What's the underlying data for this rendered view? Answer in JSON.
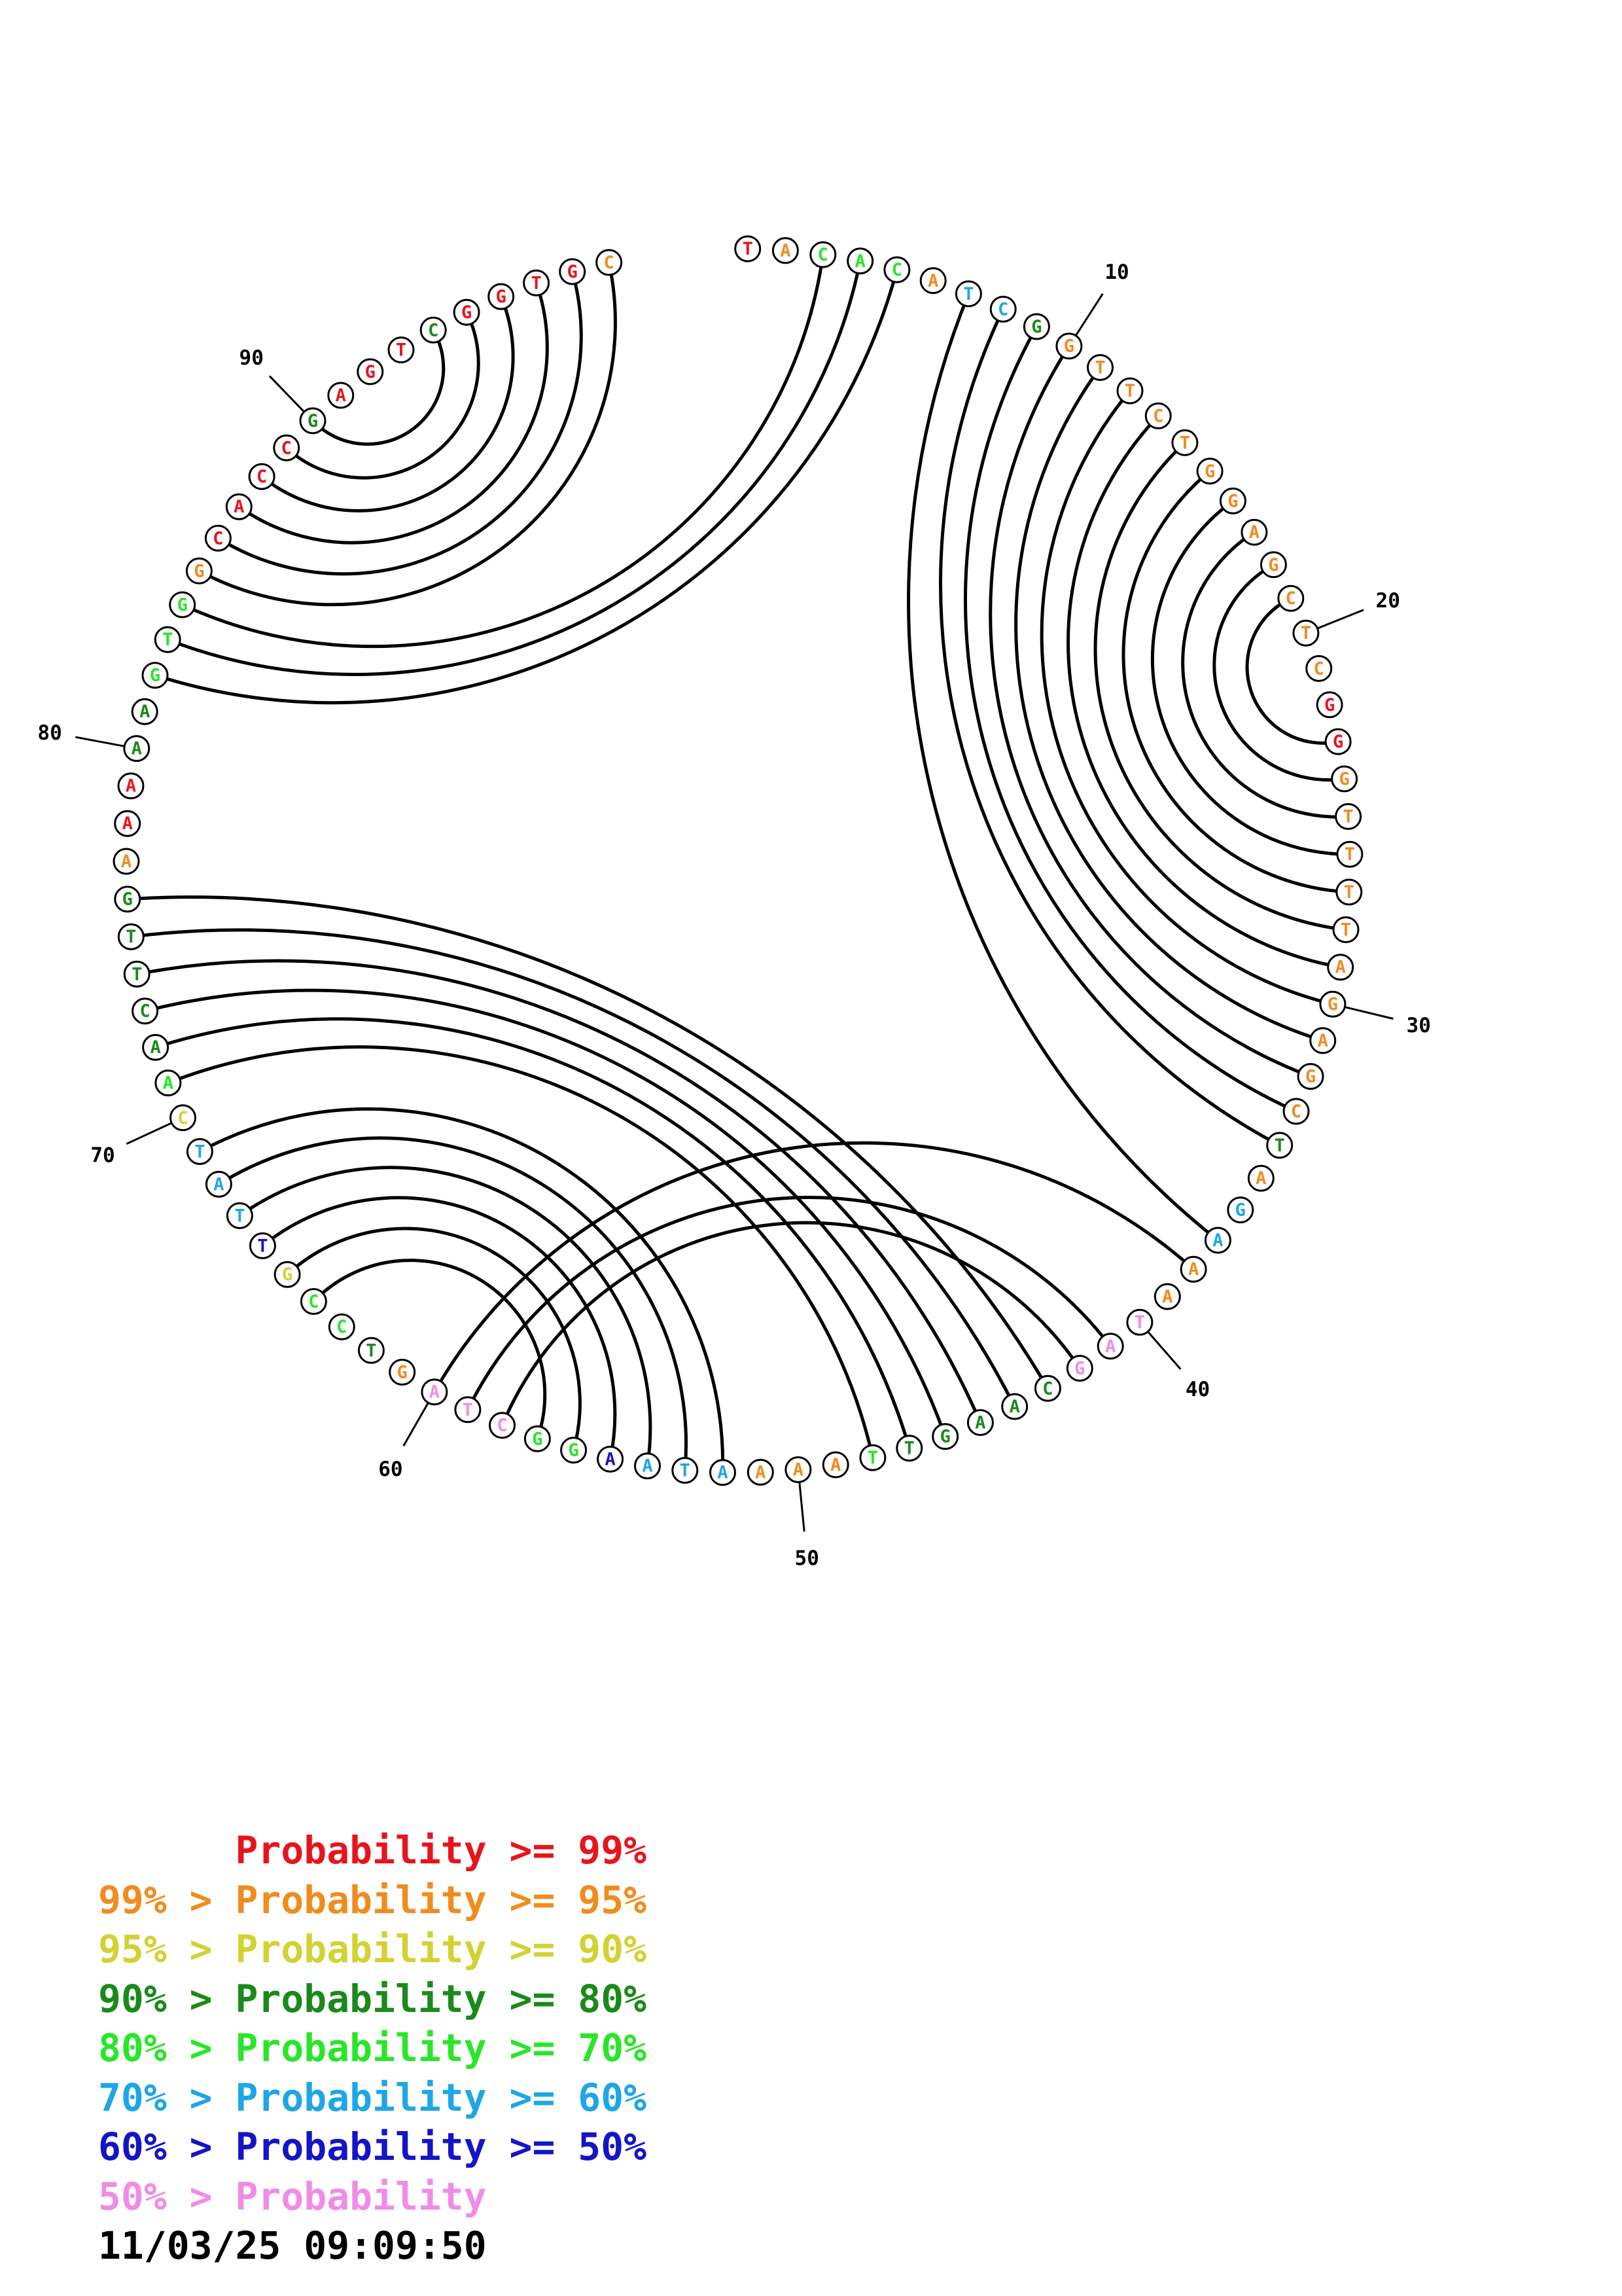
{
  "palette": {
    "p99": "#e8141c",
    "p95": "#f08c1e",
    "p90": "#d2d232",
    "p80": "#1a8a1a",
    "p70": "#28e628",
    "p60": "#1ea6e6",
    "p50": "#1414c8",
    "p00": "#f08ce6"
  },
  "sequence": [
    {
      "n": 1,
      "base": "T",
      "p": "p99"
    },
    {
      "n": 2,
      "base": "A",
      "p": "p95"
    },
    {
      "n": 3,
      "base": "C",
      "p": "p70"
    },
    {
      "n": 4,
      "base": "A",
      "p": "p70"
    },
    {
      "n": 5,
      "base": "C",
      "p": "p70"
    },
    {
      "n": 6,
      "base": "A",
      "p": "p95"
    },
    {
      "n": 7,
      "base": "T",
      "p": "p60"
    },
    {
      "n": 8,
      "base": "C",
      "p": "p60"
    },
    {
      "n": 9,
      "base": "G",
      "p": "p80"
    },
    {
      "n": 10,
      "base": "G",
      "p": "p95"
    },
    {
      "n": 11,
      "base": "T",
      "p": "p95"
    },
    {
      "n": 12,
      "base": "T",
      "p": "p95"
    },
    {
      "n": 13,
      "base": "C",
      "p": "p95"
    },
    {
      "n": 14,
      "base": "T",
      "p": "p95"
    },
    {
      "n": 15,
      "base": "G",
      "p": "p95"
    },
    {
      "n": 16,
      "base": "G",
      "p": "p95"
    },
    {
      "n": 17,
      "base": "A",
      "p": "p95"
    },
    {
      "n": 18,
      "base": "G",
      "p": "p95"
    },
    {
      "n": 19,
      "base": "C",
      "p": "p95"
    },
    {
      "n": 20,
      "base": "T",
      "p": "p95"
    },
    {
      "n": 21,
      "base": "C",
      "p": "p95"
    },
    {
      "n": 22,
      "base": "G",
      "p": "p99"
    },
    {
      "n": 23,
      "base": "G",
      "p": "p99"
    },
    {
      "n": 24,
      "base": "G",
      "p": "p95"
    },
    {
      "n": 25,
      "base": "T",
      "p": "p95"
    },
    {
      "n": 26,
      "base": "T",
      "p": "p95"
    },
    {
      "n": 27,
      "base": "T",
      "p": "p95"
    },
    {
      "n": 28,
      "base": "T",
      "p": "p95"
    },
    {
      "n": 29,
      "base": "A",
      "p": "p95"
    },
    {
      "n": 30,
      "base": "G",
      "p": "p95"
    },
    {
      "n": 31,
      "base": "A",
      "p": "p95"
    },
    {
      "n": 32,
      "base": "G",
      "p": "p95"
    },
    {
      "n": 33,
      "base": "C",
      "p": "p95"
    },
    {
      "n": 34,
      "base": "T",
      "p": "p80"
    },
    {
      "n": 35,
      "base": "A",
      "p": "p95"
    },
    {
      "n": 36,
      "base": "G",
      "p": "p60"
    },
    {
      "n": 37,
      "base": "A",
      "p": "p60"
    },
    {
      "n": 38,
      "base": "A",
      "p": "p95"
    },
    {
      "n": 39,
      "base": "A",
      "p": "p95"
    },
    {
      "n": 40,
      "base": "T",
      "p": "p00"
    },
    {
      "n": 41,
      "base": "A",
      "p": "p00"
    },
    {
      "n": 42,
      "base": "G",
      "p": "p00"
    },
    {
      "n": 43,
      "base": "C",
      "p": "p80"
    },
    {
      "n": 44,
      "base": "A",
      "p": "p80"
    },
    {
      "n": 45,
      "base": "A",
      "p": "p80"
    },
    {
      "n": 46,
      "base": "G",
      "p": "p80"
    },
    {
      "n": 47,
      "base": "T",
      "p": "p80"
    },
    {
      "n": 48,
      "base": "T",
      "p": "p70"
    },
    {
      "n": 49,
      "base": "A",
      "p": "p95"
    },
    {
      "n": 50,
      "base": "A",
      "p": "p95"
    },
    {
      "n": 51,
      "base": "A",
      "p": "p95"
    },
    {
      "n": 52,
      "base": "A",
      "p": "p60"
    },
    {
      "n": 53,
      "base": "T",
      "p": "p60"
    },
    {
      "n": 54,
      "base": "A",
      "p": "p60"
    },
    {
      "n": 55,
      "base": "A",
      "p": "p50"
    },
    {
      "n": 56,
      "base": "G",
      "p": "p70"
    },
    {
      "n": 57,
      "base": "G",
      "p": "p70"
    },
    {
      "n": 58,
      "base": "C",
      "p": "p00"
    },
    {
      "n": 59,
      "base": "T",
      "p": "p00"
    },
    {
      "n": 60,
      "base": "A",
      "p": "p00"
    },
    {
      "n": 61,
      "base": "G",
      "p": "p95"
    },
    {
      "n": 62,
      "base": "T",
      "p": "p80"
    },
    {
      "n": 63,
      "base": "C",
      "p": "p70"
    },
    {
      "n": 64,
      "base": "C",
      "p": "p70"
    },
    {
      "n": 65,
      "base": "G",
      "p": "p90"
    },
    {
      "n": 66,
      "base": "T",
      "p": "p50"
    },
    {
      "n": 67,
      "base": "T",
      "p": "p60"
    },
    {
      "n": 68,
      "base": "A",
      "p": "p60"
    },
    {
      "n": 69,
      "base": "T",
      "p": "p60"
    },
    {
      "n": 70,
      "base": "C",
      "p": "p90"
    },
    {
      "n": 71,
      "base": "A",
      "p": "p70"
    },
    {
      "n": 72,
      "base": "A",
      "p": "p80"
    },
    {
      "n": 73,
      "base": "C",
      "p": "p80"
    },
    {
      "n": 74,
      "base": "T",
      "p": "p80"
    },
    {
      "n": 75,
      "base": "T",
      "p": "p80"
    },
    {
      "n": 76,
      "base": "G",
      "p": "p80"
    },
    {
      "n": 77,
      "base": "A",
      "p": "p95"
    },
    {
      "n": 78,
      "base": "A",
      "p": "p99"
    },
    {
      "n": 79,
      "base": "A",
      "p": "p99"
    },
    {
      "n": 80,
      "base": "A",
      "p": "p80"
    },
    {
      "n": 81,
      "base": "A",
      "p": "p80"
    },
    {
      "n": 82,
      "base": "G",
      "p": "p70"
    },
    {
      "n": 83,
      "base": "T",
      "p": "p70"
    },
    {
      "n": 84,
      "base": "G",
      "p": "p70"
    },
    {
      "n": 85,
      "base": "G",
      "p": "p95"
    },
    {
      "n": 86,
      "base": "C",
      "p": "p99"
    },
    {
      "n": 87,
      "base": "A",
      "p": "p99"
    },
    {
      "n": 88,
      "base": "C",
      "p": "p99"
    },
    {
      "n": 89,
      "base": "C",
      "p": "p99"
    },
    {
      "n": 90,
      "base": "G",
      "p": "p80"
    },
    {
      "n": 91,
      "base": "A",
      "p": "p99"
    },
    {
      "n": 92,
      "base": "G",
      "p": "p99"
    },
    {
      "n": 93,
      "base": "T",
      "p": "p99"
    },
    {
      "n": 94,
      "base": "C",
      "p": "p80"
    },
    {
      "n": 95,
      "base": "G",
      "p": "p99"
    },
    {
      "n": 96,
      "base": "G",
      "p": "p99"
    },
    {
      "n": 97,
      "base": "T",
      "p": "p99"
    },
    {
      "n": 98,
      "base": "G",
      "p": "p99"
    },
    {
      "n": 99,
      "base": "C",
      "p": "p95"
    }
  ],
  "pairs": [
    [
      3,
      84
    ],
    [
      4,
      83
    ],
    [
      5,
      82
    ],
    [
      7,
      37
    ],
    [
      8,
      34
    ],
    [
      9,
      33
    ],
    [
      10,
      32
    ],
    [
      11,
      31
    ],
    [
      12,
      30
    ],
    [
      13,
      29
    ],
    [
      14,
      28
    ],
    [
      15,
      27
    ],
    [
      16,
      26
    ],
    [
      17,
      25
    ],
    [
      18,
      24
    ],
    [
      19,
      23
    ],
    [
      38,
      60
    ],
    [
      41,
      59
    ],
    [
      42,
      58
    ],
    [
      43,
      76
    ],
    [
      44,
      75
    ],
    [
      45,
      74
    ],
    [
      46,
      73
    ],
    [
      47,
      72
    ],
    [
      48,
      71
    ],
    [
      52,
      69
    ],
    [
      53,
      68
    ],
    [
      54,
      67
    ],
    [
      55,
      66
    ],
    [
      56,
      65
    ],
    [
      57,
      64
    ],
    [
      85,
      99
    ],
    [
      86,
      98
    ],
    [
      87,
      97
    ],
    [
      88,
      96
    ],
    [
      89,
      95
    ],
    [
      90,
      94
    ]
  ],
  "position_labels": [
    {
      "n": 10,
      "text": "10"
    },
    {
      "n": 20,
      "text": "20"
    },
    {
      "n": 30,
      "text": "30"
    },
    {
      "n": 40,
      "text": "40"
    },
    {
      "n": 50,
      "text": "50"
    },
    {
      "n": 60,
      "text": "60"
    },
    {
      "n": 70,
      "text": "70"
    },
    {
      "n": 80,
      "text": "80"
    },
    {
      "n": 90,
      "text": "90"
    }
  ],
  "legend": [
    {
      "text": "      Probability >= 99%",
      "p": "p99"
    },
    {
      "text": "99% > Probability >= 95%",
      "p": "p95"
    },
    {
      "text": "95% > Probability >= 90%",
      "p": "p90"
    },
    {
      "text": "90% > Probability >= 80%",
      "p": "p80"
    },
    {
      "text": "80% > Probability >= 70%",
      "p": "p70"
    },
    {
      "text": "70% > Probability >= 60%",
      "p": "p60"
    },
    {
      "text": "60% > Probability >= 50%",
      "p": "p50"
    },
    {
      "text": "50% > Probability",
      "p": "p00"
    }
  ],
  "timestamp": "11/03/25 09:09:50"
}
